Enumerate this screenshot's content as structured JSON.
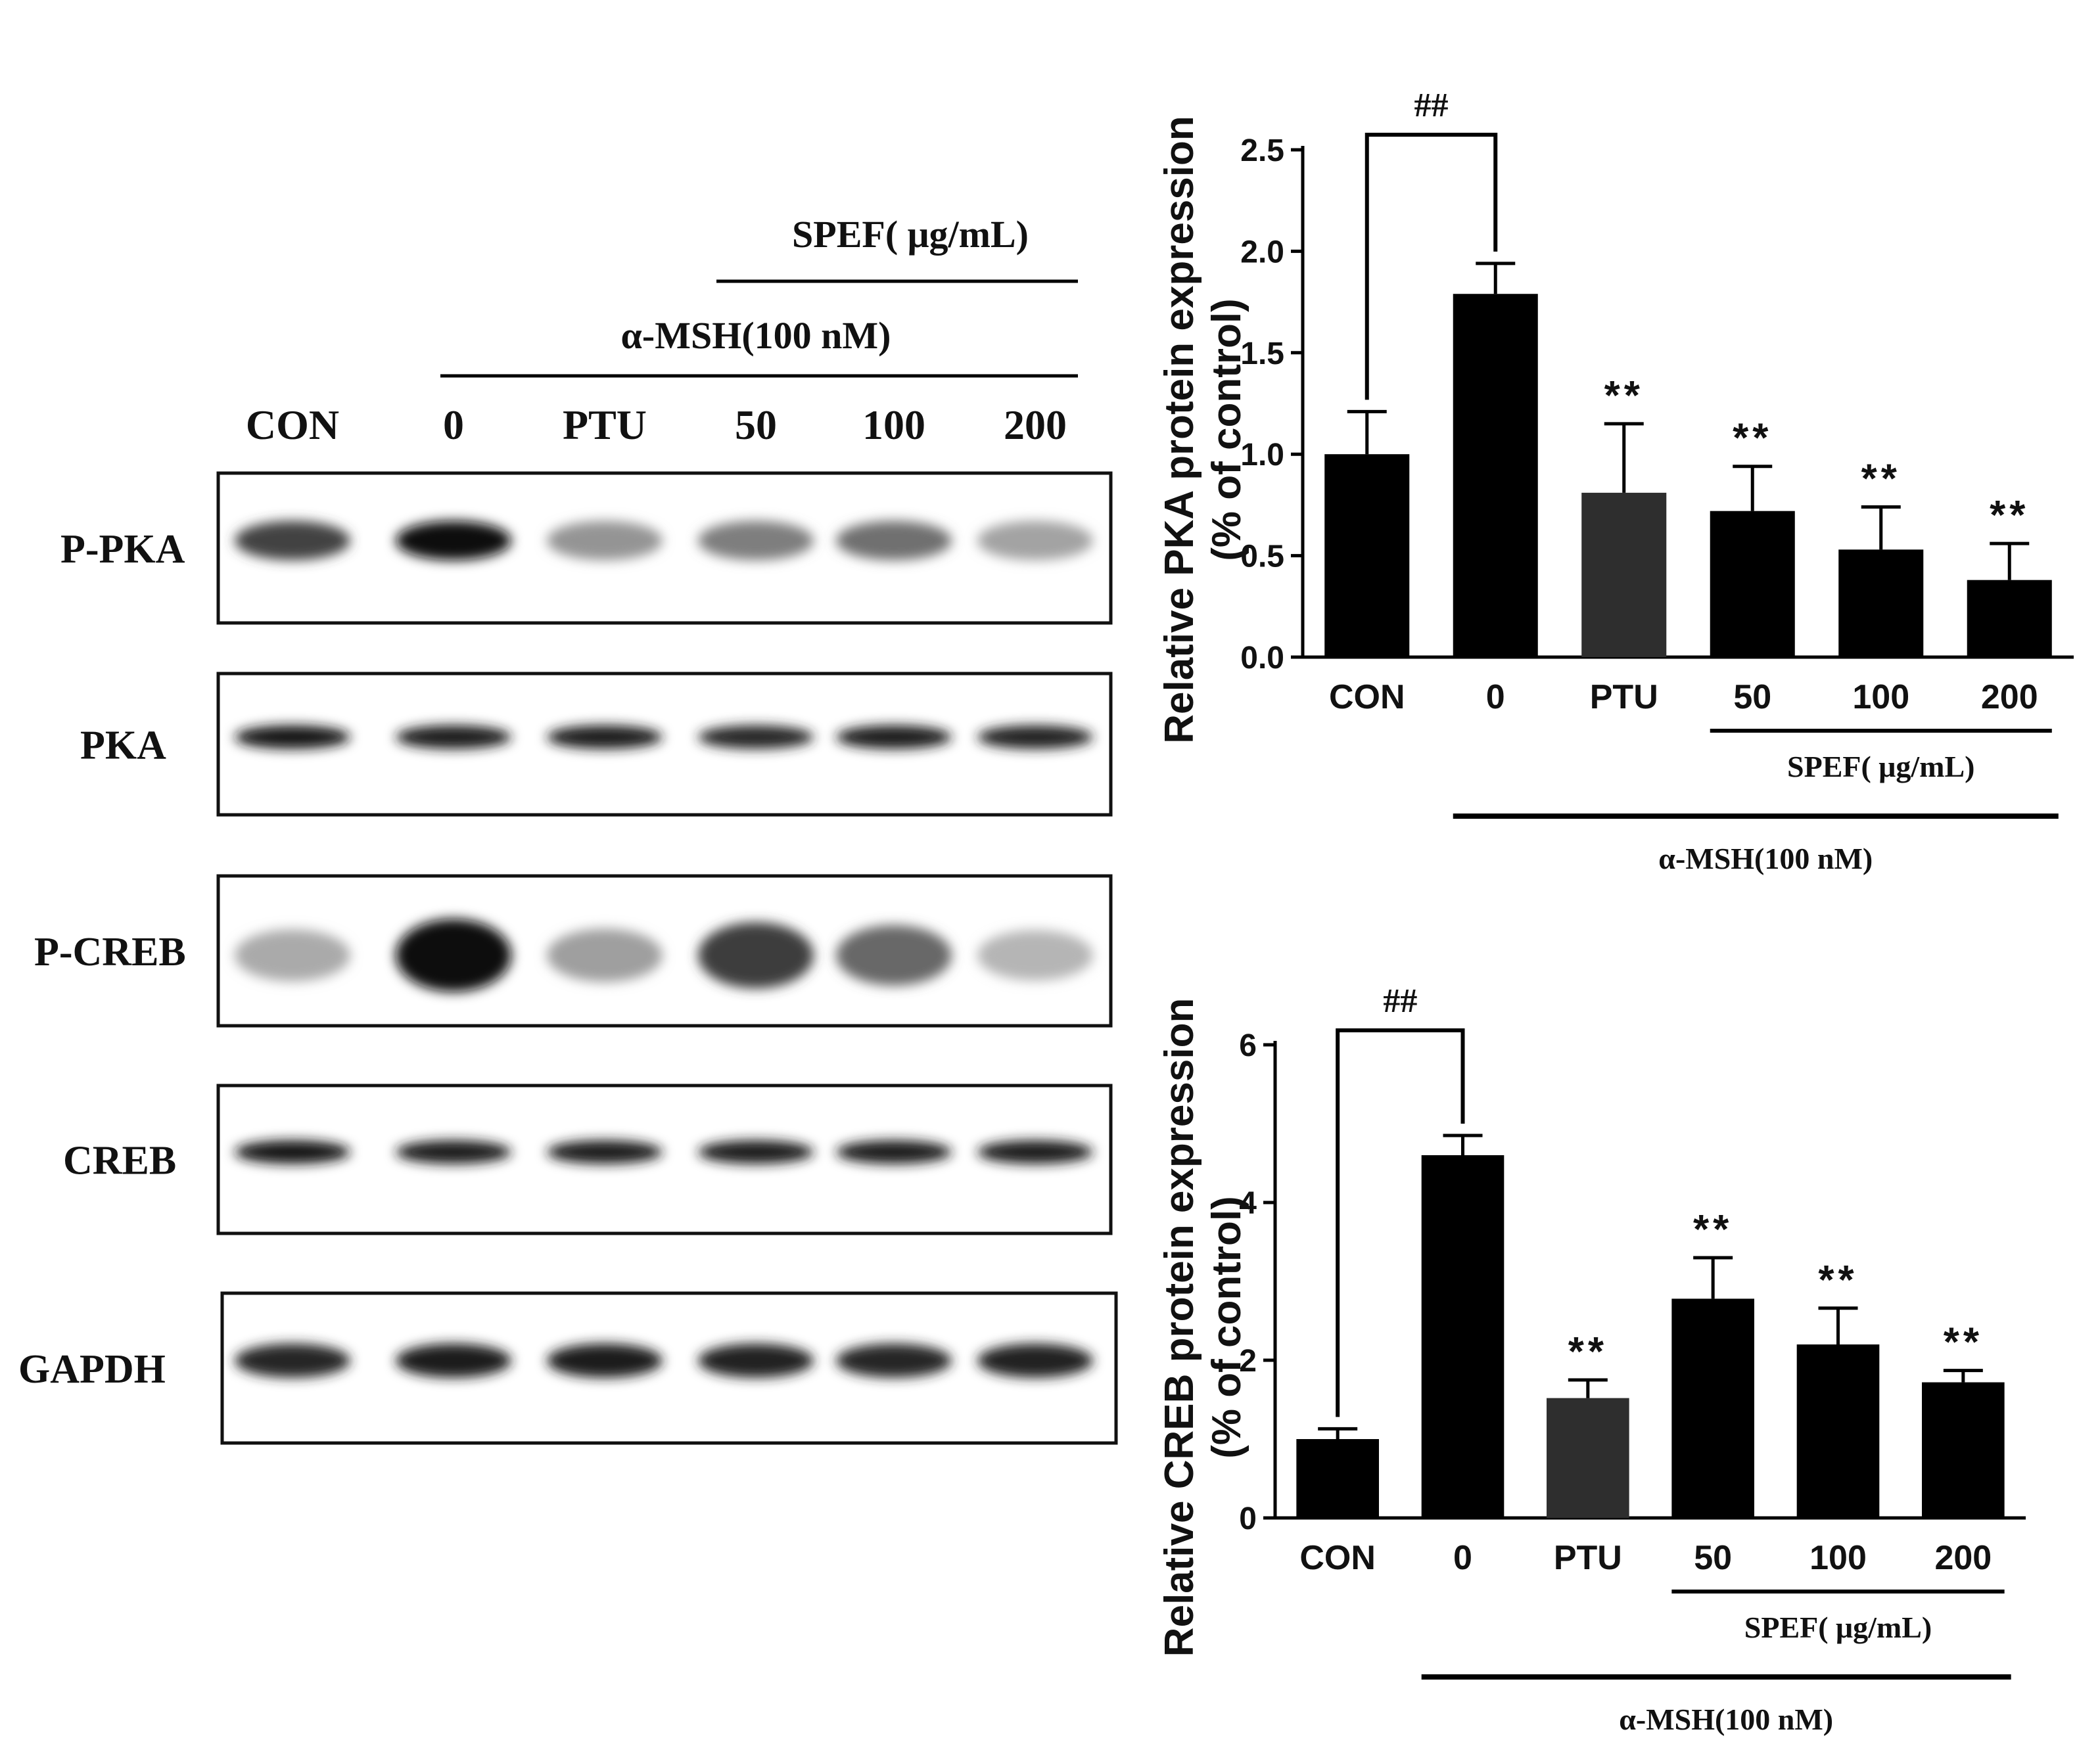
{
  "blot": {
    "spef_header": "SPEF( μg/mL)",
    "msh_header": "α-MSH(100 nM)",
    "lane_labels": [
      "CON",
      "0",
      "PTU",
      "50",
      "100",
      "200"
    ],
    "rows": [
      {
        "label": "P-PKA",
        "intensity": [
          0.72,
          0.95,
          0.35,
          0.45,
          0.52,
          0.28
        ]
      },
      {
        "label": "PKA",
        "intensity": [
          0.92,
          0.88,
          0.9,
          0.85,
          0.88,
          0.86
        ]
      },
      {
        "label": "P-CREB",
        "intensity": [
          0.25,
          0.98,
          0.3,
          0.75,
          0.55,
          0.2
        ]
      },
      {
        "label": "CREB",
        "intensity": [
          0.92,
          0.9,
          0.9,
          0.9,
          0.9,
          0.88
        ]
      },
      {
        "label": "GAPDH",
        "intensity": [
          0.85,
          0.88,
          0.9,
          0.86,
          0.85,
          0.87
        ]
      }
    ]
  },
  "chart_data": [
    {
      "type": "bar",
      "categories": [
        "CON",
        "0",
        "PTU",
        "50",
        "100",
        "200"
      ],
      "values": [
        1.0,
        1.79,
        0.81,
        0.72,
        0.53,
        0.38
      ],
      "errors": [
        0.21,
        0.15,
        0.34,
        0.22,
        0.21,
        0.18
      ],
      "bar_colors": [
        "#000000",
        "#000000",
        "#2e2e2e",
        "#000000",
        "#000000",
        "#000000"
      ],
      "ylabel_line1": "Relative PKA protein expression",
      "ylabel_line2": "(% of control)",
      "ylim": [
        0,
        2.5
      ],
      "yticks": [
        "0.0",
        "0.5",
        "1.0",
        "1.5",
        "2.0",
        "2.5"
      ],
      "significance": [
        "",
        "",
        "**",
        "**",
        "**",
        "**"
      ],
      "bracket_label": "##",
      "spef_label": "SPEF( μg/mL)",
      "msh_label": "α-MSH(100 nM)"
    },
    {
      "type": "bar",
      "categories": [
        "CON",
        "0",
        "PTU",
        "50",
        "100",
        "200"
      ],
      "values": [
        1.0,
        4.6,
        1.52,
        2.78,
        2.2,
        1.72
      ],
      "errors": [
        0.13,
        0.25,
        0.23,
        0.52,
        0.46,
        0.15
      ],
      "bar_colors": [
        "#000000",
        "#000000",
        "#2e2e2e",
        "#000000",
        "#000000",
        "#000000"
      ],
      "ylabel_line1": "Relative CREB protein expression",
      "ylabel_line2": "(% of control)",
      "ylim": [
        0,
        6
      ],
      "yticks": [
        "0",
        "2",
        "4",
        "6"
      ],
      "significance": [
        "",
        "",
        "**",
        "**",
        "**",
        "**"
      ],
      "bracket_label": "##",
      "spef_label": "SPEF( μg/mL)",
      "msh_label": "α-MSH(100 nM)"
    }
  ]
}
